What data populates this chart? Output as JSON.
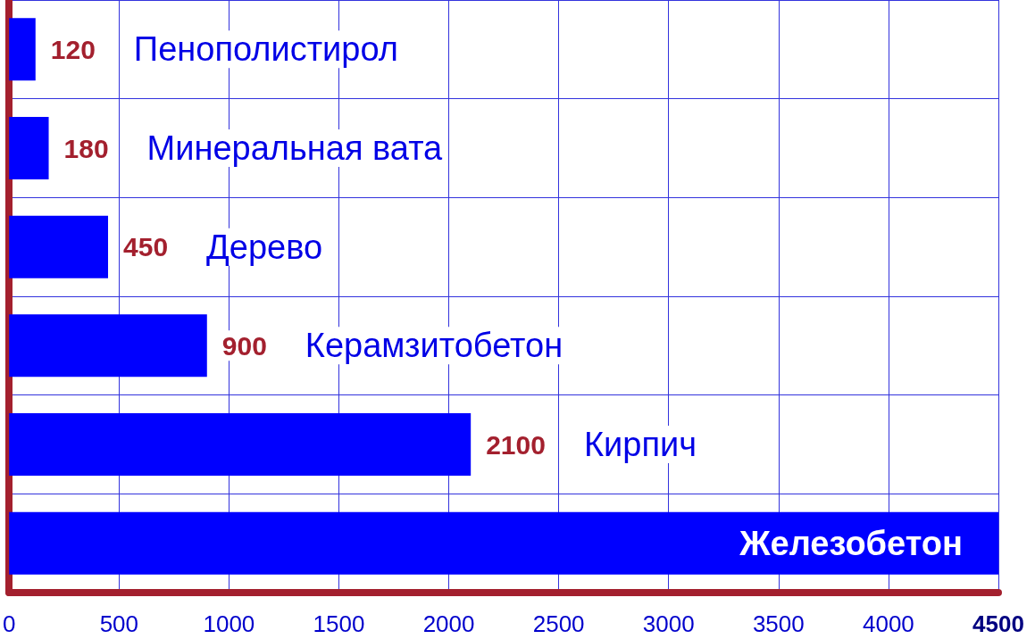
{
  "chart_data": {
    "type": "bar",
    "orientation": "horizontal",
    "categories": [
      "Пенополистирол",
      "Минеральная вата",
      "Дерево",
      "Керамзитобетон",
      "Кирпич",
      "Железобетон"
    ],
    "values": [
      120,
      180,
      450,
      900,
      2100,
      4500
    ],
    "value_labels": [
      "120",
      "180",
      "450",
      "900",
      "2100",
      null
    ],
    "color": "#0000ff",
    "xlim": [
      0,
      4500
    ],
    "xticks": [
      0,
      500,
      1000,
      1500,
      2000,
      2500,
      3000,
      3500,
      4000,
      4500
    ],
    "grid": true,
    "tick_labels": "x"
  }
}
